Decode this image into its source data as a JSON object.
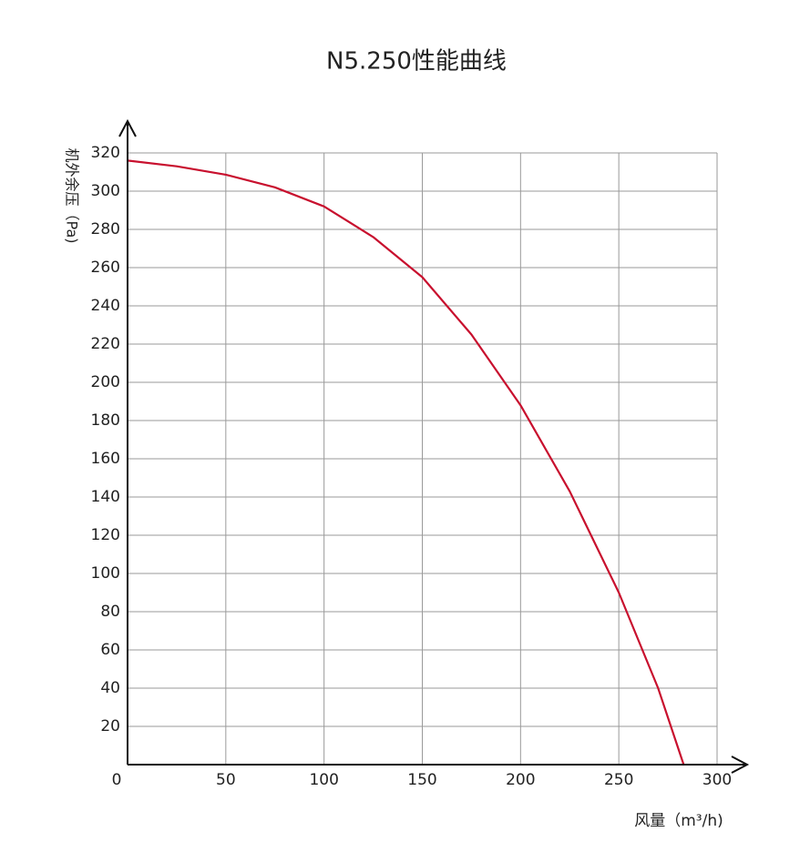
{
  "chart_data": {
    "type": "line",
    "title": "N5.250性能曲线",
    "x_label": "风量（m³/h)",
    "y_label": "机外余压（Pa)",
    "x": [
      0,
      25,
      50,
      75,
      100,
      125,
      150,
      175,
      200,
      225,
      250,
      270,
      283
    ],
    "series": [
      {
        "name": "N5.250",
        "color": "#c8102e",
        "values": [
          316,
          313,
          308.6,
          302,
          292,
          276,
          255,
          225,
          188,
          143,
          90,
          40,
          0
        ]
      }
    ],
    "xlim": [
      0,
      300
    ],
    "xticks": [
      0,
      50,
      100,
      150,
      200,
      250,
      300
    ],
    "ylim": [
      0,
      320
    ],
    "yticks": [
      20,
      40,
      60,
      80,
      100,
      120,
      140,
      160,
      180,
      200,
      220,
      240,
      260,
      280,
      300,
      320
    ],
    "grid": true
  }
}
